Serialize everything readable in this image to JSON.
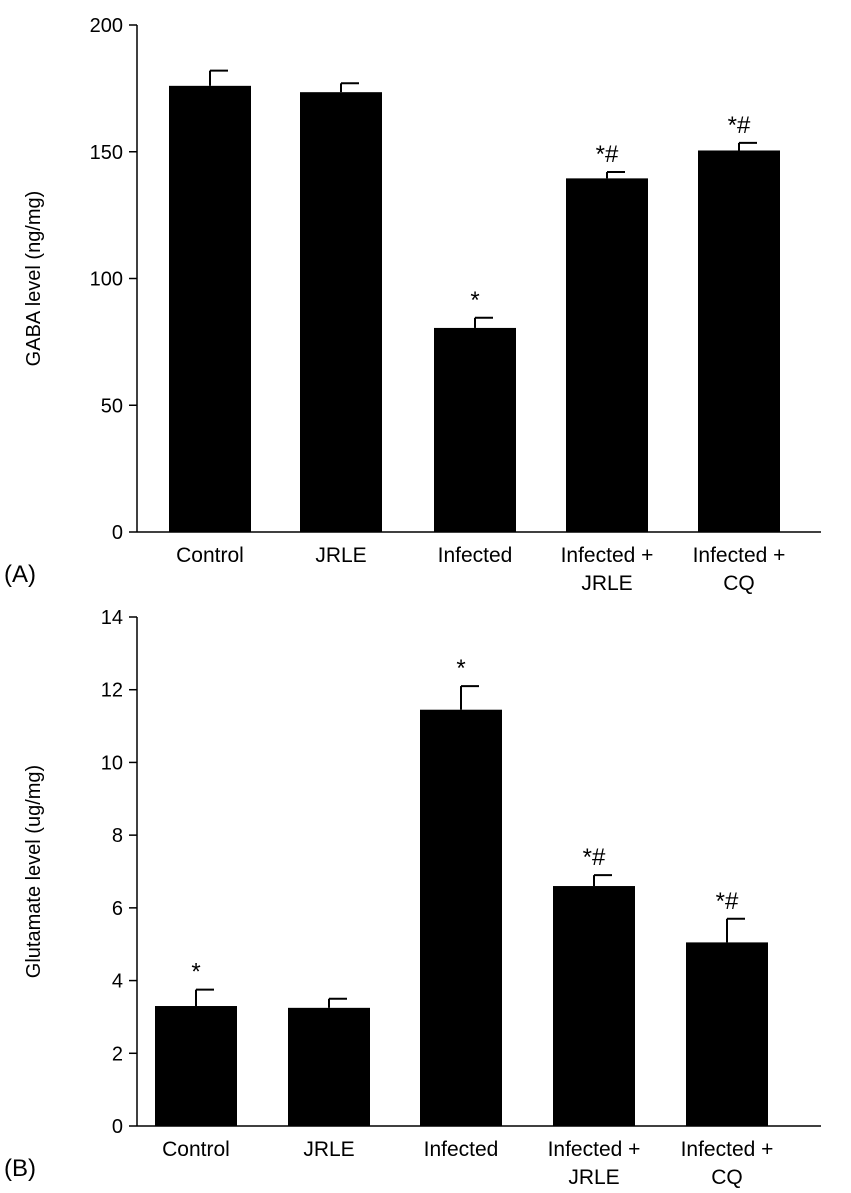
{
  "chart_data": [
    {
      "type": "bar",
      "panel_label": "(A)",
      "ylabel": "GABA level (ng/mg)",
      "xlabel": "",
      "ylim": [
        0,
        200
      ],
      "yticks": [
        0,
        50,
        100,
        150,
        200
      ],
      "grid": false,
      "categories": [
        [
          "Control"
        ],
        [
          "JRLE"
        ],
        [
          "Infected"
        ],
        [
          "Infected +",
          "JRLE"
        ],
        [
          "Infected +",
          "CQ"
        ]
      ],
      "values": [
        176,
        173.5,
        80.5,
        139.5,
        150.5
      ],
      "errors": [
        6,
        3.5,
        4,
        2.5,
        3
      ],
      "significance": [
        "",
        "",
        "*",
        "*#",
        "*#"
      ],
      "color": "#000000"
    },
    {
      "type": "bar",
      "panel_label": "(B)",
      "ylabel": "Glutamate level (ug/mg)",
      "xlabel": "",
      "ylim": [
        0,
        14
      ],
      "yticks": [
        0,
        2,
        4,
        6,
        8,
        10,
        12,
        14
      ],
      "grid": false,
      "categories": [
        [
          "Control"
        ],
        [
          "JRLE"
        ],
        [
          "Infected"
        ],
        [
          "Infected +",
          "JRLE"
        ],
        [
          "Infected +",
          "CQ"
        ]
      ],
      "values": [
        3.3,
        3.25,
        11.45,
        6.6,
        5.05
      ],
      "errors": [
        0.45,
        0.25,
        0.65,
        0.3,
        0.65
      ],
      "significance": [
        "*",
        "",
        "*",
        "*#",
        "*#"
      ],
      "color": "#000000"
    }
  ]
}
